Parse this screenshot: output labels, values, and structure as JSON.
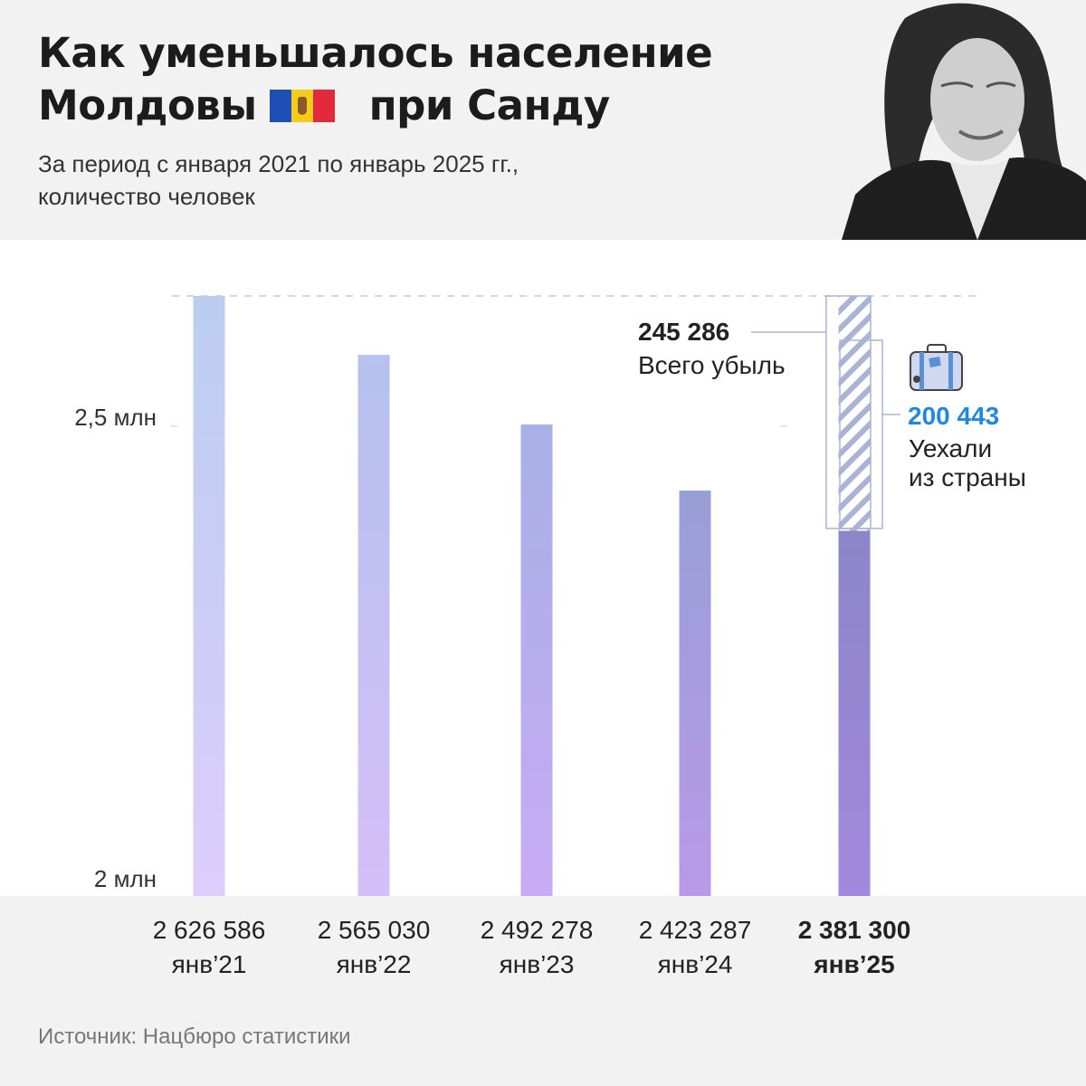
{
  "header": {
    "title_line1": "Как уменьшалось население",
    "title_line2_a": "Молдовы",
    "title_line2_b": "при Санду",
    "subtitle_line1": "За период с января 2021 по январь 2025 гг.,",
    "subtitle_line2": "количество человек"
  },
  "chart_data": {
    "type": "bar",
    "categories": [
      "янв’21",
      "янв’22",
      "янв’23",
      "янв’24",
      "янв’25"
    ],
    "values": [
      2626586,
      2565030,
      2492278,
      2423287,
      2381300
    ],
    "value_labels": [
      "2 626 586",
      "2 565 030",
      "2 492 278",
      "2 423 287",
      "2 381 300"
    ],
    "y_ticks": [
      {
        "value": 2500000,
        "label": "2,5 млн"
      },
      {
        "value": 2000000,
        "label": "2 млн"
      }
    ],
    "ylim": [
      2000000,
      2626586
    ],
    "annotations": {
      "total_loss_value": "245 286",
      "total_loss_label": "Всего убыль",
      "emigrated_value": "200 443",
      "emigrated_label_line1": "Уехали",
      "emigrated_label_line2": "из страны"
    },
    "colors": {
      "bar_top": [
        "#bccdf1",
        "#b5c1ee",
        "#a7b0e6",
        "#989ed6",
        "#8b86c8"
      ],
      "bar_bottom": [
        "#dccdfc",
        "#d5bff9",
        "#c8abf4",
        "#b99ae8",
        "#a388dc"
      ],
      "accent": "#1e88e5",
      "dashed_line": "#c8c8d8"
    }
  },
  "footer": {
    "source": "Источник: Нацбюро статистики"
  }
}
